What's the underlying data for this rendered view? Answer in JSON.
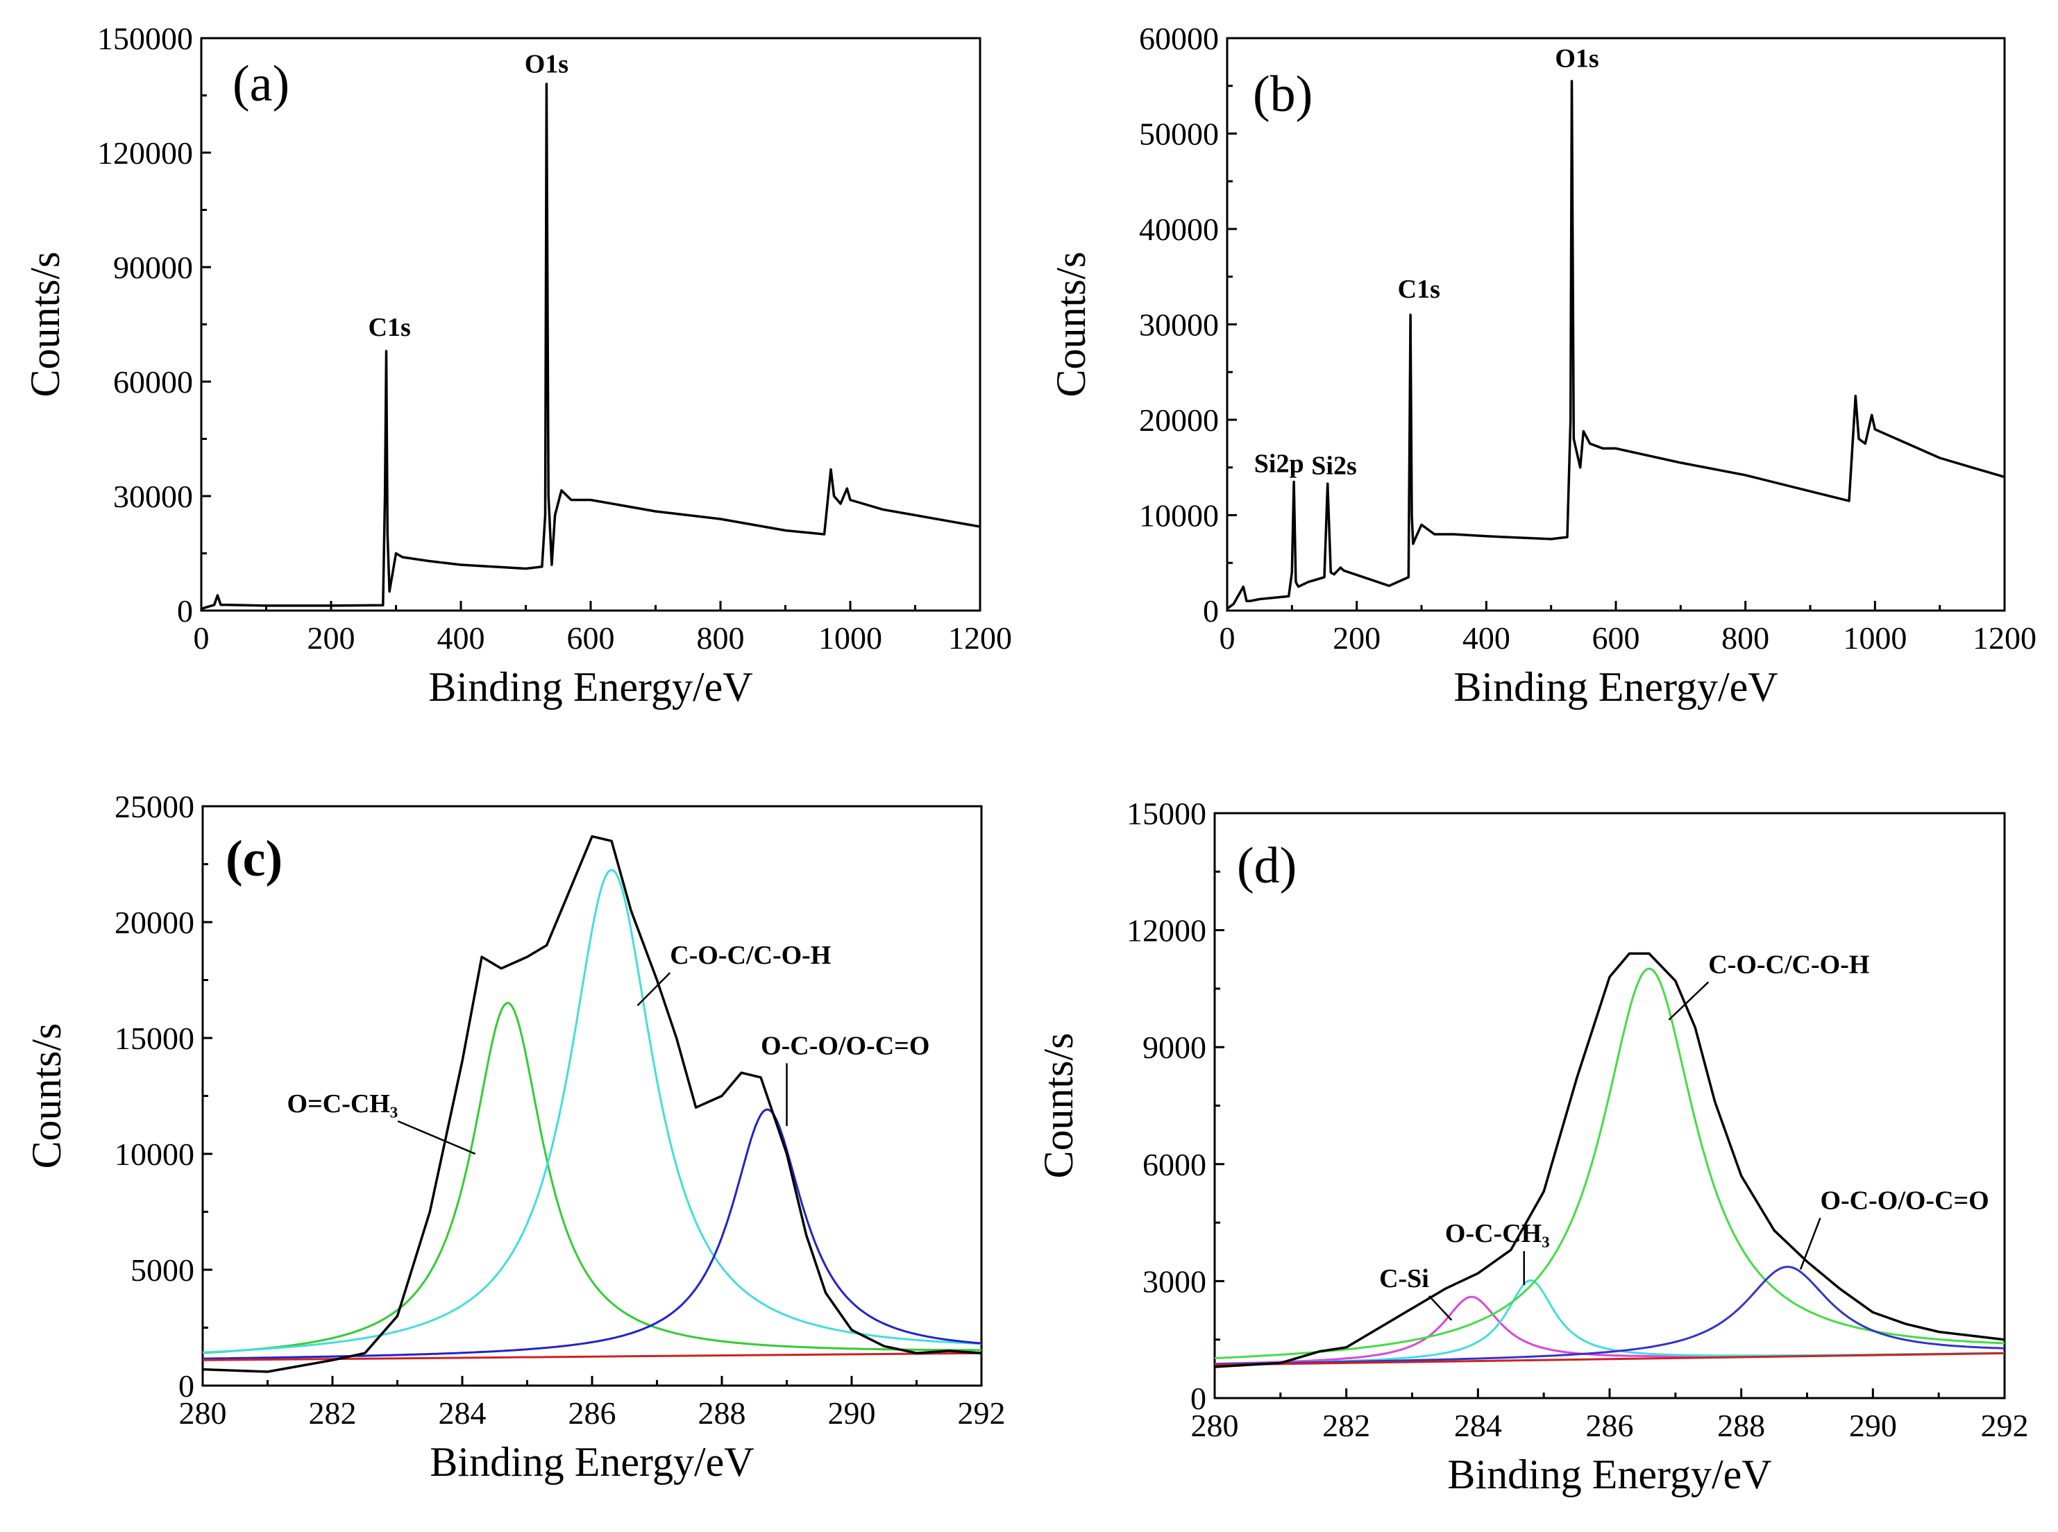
{
  "figure": {
    "description_free": true
  },
  "chart_data": [
    {
      "id": "a",
      "type": "line",
      "panel_label": "(a)",
      "xlabel": "Binding Energy/eV",
      "ylabel": "Counts/s",
      "xlim": [
        0,
        1200
      ],
      "ylim": [
        0,
        150000
      ],
      "xticks": [
        0,
        200,
        400,
        600,
        800,
        1000,
        1200
      ],
      "yticks": [
        0,
        30000,
        60000,
        90000,
        120000,
        150000
      ],
      "series": [
        {
          "name": "survey",
          "color": "#000000",
          "x": [
            0,
            20,
            25,
            30,
            40,
            100,
            200,
            280,
            283,
            285,
            287,
            290,
            300,
            310,
            350,
            400,
            500,
            525,
            530,
            532,
            535,
            540,
            545,
            555,
            570,
            600,
            700,
            800,
            900,
            960,
            970,
            975,
            985,
            995,
            1000,
            1050,
            1100,
            1150,
            1200
          ],
          "y": [
            500,
            1500,
            4000,
            1500,
            1500,
            1300,
            1300,
            1400,
            30000,
            68000,
            20000,
            5000,
            15000,
            14000,
            13000,
            12000,
            11000,
            11500,
            25000,
            138000,
            30000,
            12000,
            25000,
            31500,
            29000,
            29000,
            26000,
            24000,
            21000,
            20000,
            37000,
            30000,
            28000,
            32000,
            29000,
            26500,
            25000,
            23500,
            22000
          ]
        }
      ],
      "annotations": [
        {
          "text": "C1s",
          "x": 290,
          "y": 72000
        },
        {
          "text": "O1s",
          "x": 532,
          "y": 141000
        }
      ]
    },
    {
      "id": "b",
      "type": "line",
      "panel_label": "(b)",
      "xlabel": "Binding Energy/eV",
      "ylabel": "Counts/s",
      "xlim": [
        0,
        1200
      ],
      "ylim": [
        0,
        60000
      ],
      "xticks": [
        0,
        200,
        400,
        600,
        800,
        1000,
        1200
      ],
      "yticks": [
        0,
        10000,
        20000,
        30000,
        40000,
        50000,
        60000
      ],
      "series": [
        {
          "name": "survey",
          "color": "#000000",
          "x": [
            0,
            10,
            25,
            30,
            35,
            50,
            95,
            100,
            103,
            106,
            110,
            125,
            150,
            155,
            160,
            165,
            175,
            180,
            250,
            280,
            283,
            285,
            287,
            290,
            300,
            320,
            350,
            400,
            500,
            525,
            530,
            532,
            535,
            545,
            550,
            560,
            580,
            600,
            700,
            800,
            900,
            960,
            970,
            975,
            985,
            995,
            1000,
            1050,
            1100,
            1150,
            1200
          ],
          "y": [
            200,
            700,
            2500,
            1000,
            1000,
            1200,
            1500,
            4000,
            13500,
            3000,
            2500,
            3000,
            3500,
            13300,
            4000,
            3800,
            4500,
            4200,
            2600,
            3500,
            31000,
            10000,
            7000,
            7500,
            9000,
            8000,
            8000,
            7800,
            7500,
            7700,
            20000,
            55500,
            18000,
            15000,
            18800,
            17500,
            17000,
            17000,
            15500,
            14200,
            12500,
            11500,
            22500,
            18000,
            17500,
            20500,
            19000,
            17500,
            16000,
            15000,
            14000
          ]
        }
      ],
      "annotations": [
        {
          "text": "Si2p",
          "x": 80,
          "y": 14500
        },
        {
          "text": "Si2s",
          "x": 165,
          "y": 14300
        },
        {
          "text": "C1s",
          "x": 296,
          "y": 32800
        },
        {
          "text": "O1s",
          "x": 540,
          "y": 57000
        }
      ]
    },
    {
      "id": "c",
      "type": "line",
      "panel_label": "(c)",
      "xlabel": "Binding Energy/eV",
      "ylabel": "Counts/s",
      "xlim": [
        280,
        292
      ],
      "ylim": [
        0,
        25000
      ],
      "xticks": [
        280,
        282,
        284,
        286,
        288,
        290,
        292
      ],
      "yticks": [
        0,
        5000,
        10000,
        15000,
        20000,
        25000
      ],
      "series": [
        {
          "name": "experimental",
          "color": "#000000",
          "x": [
            280,
            281,
            282,
            282.5,
            283,
            283.5,
            284,
            284.3,
            284.6,
            285,
            285.3,
            285.6,
            286,
            286.3,
            286.6,
            287,
            287.3,
            287.6,
            288,
            288.3,
            288.6,
            289,
            289.3,
            289.6,
            290,
            290.5,
            291,
            291.5,
            292
          ],
          "y": [
            700,
            600,
            1100,
            1400,
            3000,
            7500,
            14000,
            18500,
            18000,
            18500,
            19000,
            21000,
            23700,
            23500,
            20500,
            17500,
            15000,
            12000,
            12500,
            13500,
            13300,
            10000,
            6500,
            4000,
            2400,
            1700,
            1400,
            1500,
            1400
          ]
        },
        {
          "name": "O=C-CH3",
          "color": "#33cc33",
          "center": 284.7,
          "fwhm": 1.35,
          "amplitude": 15300,
          "background": "linear 1100 at 280 to 1400 at 292"
        },
        {
          "name": "C-O-C/C-O-H",
          "color": "#44dddd",
          "center": 286.3,
          "fwhm": 1.6,
          "amplitude": 21000,
          "background": "linear 1100 at 280 to 1400 at 292"
        },
        {
          "name": "O-C-O/O-C=O",
          "color": "#2222cc",
          "center": 288.7,
          "fwhm": 1.35,
          "amplitude": 10600,
          "background": "linear 1100 at 280 to 1400 at 292"
        },
        {
          "name": "background",
          "color": "#cc2222",
          "x": [
            280,
            292
          ],
          "y": [
            1100,
            1400
          ]
        }
      ],
      "annotations": [
        {
          "text": "O=C-CH₃",
          "x": 281.3,
          "y": 11800,
          "pointer": [
            284.2,
            10000
          ]
        },
        {
          "text": "C-O-C/C-O-H",
          "x": 287.2,
          "y": 18200,
          "pointer": [
            286.7,
            16400
          ]
        },
        {
          "text": "O-C-O/O-C=O",
          "x": 288.6,
          "y": 14300,
          "pointer": [
            289.0,
            11200
          ]
        }
      ]
    },
    {
      "id": "d",
      "type": "line",
      "panel_label": "(d)",
      "xlabel": "Binding Energy/eV",
      "ylabel": "Counts/s",
      "xlim": [
        280,
        292
      ],
      "ylim": [
        0,
        15000
      ],
      "xticks": [
        280,
        282,
        284,
        286,
        288,
        290,
        292
      ],
      "yticks": [
        0,
        3000,
        6000,
        9000,
        12000,
        15000
      ],
      "series": [
        {
          "name": "experimental",
          "color": "#000000",
          "x": [
            280,
            281,
            281.6,
            282,
            282.5,
            283,
            283.5,
            284,
            284.5,
            285,
            285.5,
            286,
            286.3,
            286.6,
            287,
            287.3,
            287.6,
            288,
            288.5,
            289,
            289.5,
            290,
            290.5,
            291,
            291.5,
            292
          ],
          "y": [
            800,
            900,
            1200,
            1300,
            1800,
            2300,
            2800,
            3200,
            3800,
            5300,
            8200,
            10800,
            11400,
            11400,
            10700,
            9500,
            7600,
            5700,
            4300,
            3500,
            2800,
            2200,
            1900,
            1700,
            1600,
            1500
          ]
        },
        {
          "name": "C-Si",
          "color": "#dd44dd",
          "center": 283.9,
          "fwhm": 1.05,
          "amplitude": 1650,
          "background": "linear 850 at 280 to 1150 at 292"
        },
        {
          "name": "O-C-CH3",
          "color": "#44dddd",
          "center": 284.8,
          "fwhm": 0.9,
          "amplitude": 2050,
          "background": "linear 850 at 280 to 1150 at 292"
        },
        {
          "name": "C-O-C/C-O-H",
          "color": "#44dd44",
          "center": 286.6,
          "fwhm": 1.75,
          "amplitude": 10000,
          "background": "linear 850 at 280 to 1150 at 292"
        },
        {
          "name": "O-C-O/O-C=O",
          "color": "#3333cc",
          "center": 288.7,
          "fwhm": 1.6,
          "amplitude": 2300,
          "background": "linear 850 at 280 to 1150 at 292"
        },
        {
          "name": "background",
          "color": "#cc2222",
          "x": [
            280,
            292
          ],
          "y": [
            850,
            1150
          ]
        }
      ],
      "annotations": [
        {
          "text": "C-Si",
          "x": 282.5,
          "y": 2850,
          "pointer": [
            283.6,
            2000
          ]
        },
        {
          "text": "O-C-CH₃",
          "x": 283.5,
          "y": 4000,
          "pointer": [
            284.7,
            2900
          ]
        },
        {
          "text": "C-O-C/C-O-H",
          "x": 287.5,
          "y": 10900,
          "pointer": [
            286.9,
            9700
          ]
        },
        {
          "text": "O-C-O/O-C=O",
          "x": 289.2,
          "y": 4850,
          "pointer": [
            288.9,
            3300
          ]
        }
      ]
    }
  ]
}
